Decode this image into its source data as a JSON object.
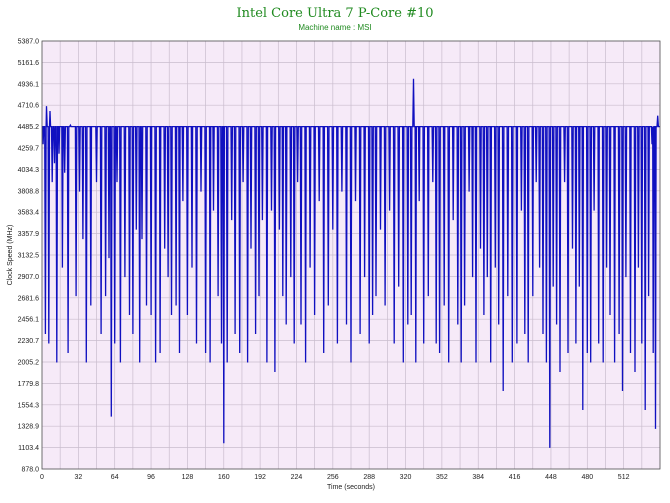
{
  "chart_data": {
    "type": "line",
    "title": "Intel Core Ultra 7 P-Core #10",
    "subtitle": "Machine name : MSI",
    "xlabel": "Time (seconds)",
    "ylabel": "Clock Speed (MHz)",
    "xlim": [
      0,
      544
    ],
    "ylim": [
      878.0,
      5387.0
    ],
    "xticks": [
      0,
      32,
      64,
      96,
      128,
      160,
      192,
      224,
      256,
      288,
      320,
      352,
      384,
      416,
      448,
      480,
      512
    ],
    "yticks": [
      "878.0",
      "1103.4",
      "1328.9",
      "1554.3",
      "1779.8",
      "2005.2",
      "2230.7",
      "2456.1",
      "2681.6",
      "2907.0",
      "3132.5",
      "3357.9",
      "3583.4",
      "3808.8",
      "4034.3",
      "4259.7",
      "4485.2",
      "4710.6",
      "4936.1",
      "5161.6",
      "5387.0"
    ],
    "grid": true,
    "background": "#f6eaf8",
    "grid_color": "#c9bccd",
    "line_color": "#1010c0",
    "title_color": "#1f8a1f",
    "series": [
      {
        "name": "",
        "baseline": 4485.2,
        "dips": [
          [
            1,
            4300
          ],
          [
            3,
            2300
          ],
          [
            4,
            4700
          ],
          [
            6,
            2200
          ],
          [
            7,
            4650
          ],
          [
            9,
            3900
          ],
          [
            11,
            4100
          ],
          [
            13,
            2000
          ],
          [
            15,
            4200
          ],
          [
            18,
            3000
          ],
          [
            20,
            4000
          ],
          [
            23,
            2100
          ],
          [
            25,
            4500
          ],
          [
            30,
            2700
          ],
          [
            33,
            3800
          ],
          [
            36,
            3300
          ],
          [
            39,
            2000
          ],
          [
            43,
            2600
          ],
          [
            48,
            3900
          ],
          [
            52,
            2300
          ],
          [
            56,
            2700
          ],
          [
            59,
            3100
          ],
          [
            61,
            1430
          ],
          [
            64,
            2200
          ],
          [
            66,
            3900
          ],
          [
            69,
            2000
          ],
          [
            73,
            2900
          ],
          [
            77,
            2500
          ],
          [
            80,
            2300
          ],
          [
            83,
            3400
          ],
          [
            86,
            2000
          ],
          [
            88,
            3300
          ],
          [
            92,
            2600
          ],
          [
            96,
            2500
          ],
          [
            100,
            2000
          ],
          [
            104,
            2100
          ],
          [
            108,
            3200
          ],
          [
            111,
            2900
          ],
          [
            114,
            2500
          ],
          [
            118,
            2600
          ],
          [
            121,
            2100
          ],
          [
            124,
            3700
          ],
          [
            128,
            2500
          ],
          [
            132,
            3000
          ],
          [
            136,
            2200
          ],
          [
            140,
            3800
          ],
          [
            144,
            2100
          ],
          [
            148,
            2000
          ],
          [
            151,
            3600
          ],
          [
            155,
            2700
          ],
          [
            158,
            2200
          ],
          [
            160,
            1150
          ],
          [
            163,
            2000
          ],
          [
            167,
            3500
          ],
          [
            170,
            2300
          ],
          [
            174,
            2100
          ],
          [
            177,
            3900
          ],
          [
            181,
            2000
          ],
          [
            184,
            3200
          ],
          [
            188,
            2300
          ],
          [
            191,
            2700
          ],
          [
            194,
            3500
          ],
          [
            198,
            2000
          ],
          [
            202,
            3600
          ],
          [
            205,
            1900
          ],
          [
            209,
            3400
          ],
          [
            212,
            2700
          ],
          [
            215,
            2400
          ],
          [
            219,
            2900
          ],
          [
            222,
            2200
          ],
          [
            225,
            3900
          ],
          [
            228,
            2400
          ],
          [
            232,
            2000
          ],
          [
            236,
            3000
          ],
          [
            240,
            2500
          ],
          [
            244,
            3700
          ],
          [
            248,
            2100
          ],
          [
            252,
            2600
          ],
          [
            256,
            3400
          ],
          [
            260,
            2200
          ],
          [
            264,
            3800
          ],
          [
            268,
            2400
          ],
          [
            272,
            2000
          ],
          [
            276,
            3700
          ],
          [
            280,
            2300
          ],
          [
            284,
            2900
          ],
          [
            288,
            2200
          ],
          [
            291,
            2500
          ],
          [
            294,
            2700
          ],
          [
            298,
            3400
          ],
          [
            302,
            2600
          ],
          [
            306,
            3600
          ],
          [
            310,
            2200
          ],
          [
            314,
            2800
          ],
          [
            318,
            2000
          ],
          [
            322,
            2400
          ],
          [
            325,
            2500
          ],
          [
            327,
            4990
          ],
          [
            329,
            2000
          ],
          [
            332,
            3700
          ],
          [
            336,
            2200
          ],
          [
            340,
            2700
          ],
          [
            344,
            3900
          ],
          [
            347,
            2200
          ],
          [
            350,
            2100
          ],
          [
            354,
            2600
          ],
          [
            358,
            2000
          ],
          [
            362,
            3500
          ],
          [
            366,
            2400
          ],
          [
            369,
            2000
          ],
          [
            372,
            2600
          ],
          [
            376,
            3800
          ],
          [
            379,
            2900
          ],
          [
            382,
            2000
          ],
          [
            386,
            3200
          ],
          [
            389,
            2500
          ],
          [
            392,
            2900
          ],
          [
            395,
            2000
          ],
          [
            399,
            3000
          ],
          [
            402,
            2400
          ],
          [
            406,
            1700
          ],
          [
            410,
            2700
          ],
          [
            414,
            2000
          ],
          [
            418,
            2200
          ],
          [
            422,
            3600
          ],
          [
            425,
            2300
          ],
          [
            428,
            2000
          ],
          [
            432,
            2700
          ],
          [
            435,
            3900
          ],
          [
            438,
            3000
          ],
          [
            441,
            2300
          ],
          [
            444,
            2000
          ],
          [
            447,
            1100
          ],
          [
            450,
            2800
          ],
          [
            453,
            2400
          ],
          [
            456,
            1900
          ],
          [
            460,
            3900
          ],
          [
            463,
            2100
          ],
          [
            467,
            3200
          ],
          [
            470,
            2200
          ],
          [
            473,
            2800
          ],
          [
            476,
            1500
          ],
          [
            480,
            2100
          ],
          [
            483,
            2000
          ],
          [
            486,
            3600
          ],
          [
            490,
            2200
          ],
          [
            494,
            2000
          ],
          [
            497,
            3000
          ],
          [
            500,
            2500
          ],
          [
            504,
            2000
          ],
          [
            508,
            2300
          ],
          [
            511,
            1700
          ],
          [
            514,
            2900
          ],
          [
            518,
            2100
          ],
          [
            522,
            1900
          ],
          [
            525,
            3000
          ],
          [
            528,
            2200
          ],
          [
            531,
            1500
          ],
          [
            534,
            2700
          ],
          [
            537,
            4300
          ],
          [
            538,
            2100
          ],
          [
            540,
            1300
          ],
          [
            542,
            4600
          ]
        ]
      }
    ]
  }
}
